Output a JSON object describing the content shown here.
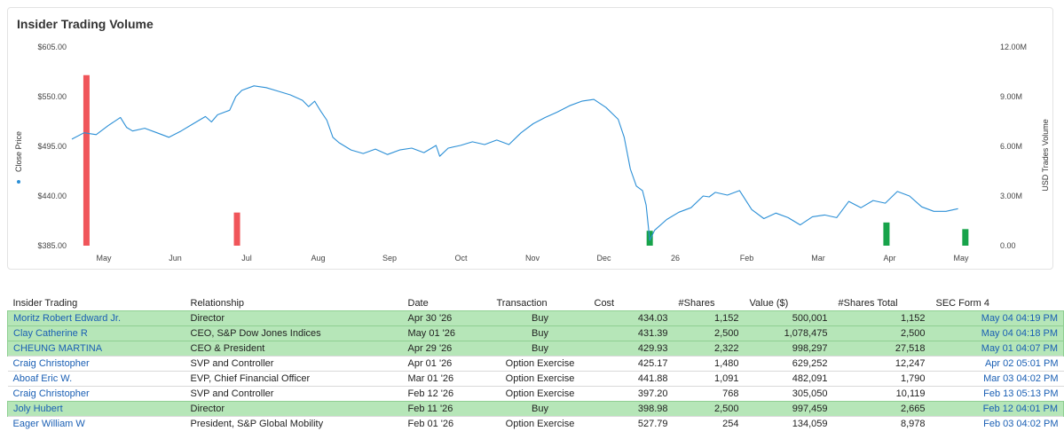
{
  "panel": {
    "title": "Insider Trading Volume"
  },
  "chart_data": {
    "type": "line",
    "title": "Insider Trading Volume",
    "ylabel": "Close Price",
    "y2label": "USD Trades Volume",
    "ylim": [
      385,
      605
    ],
    "y2lim": [
      0,
      12000000
    ],
    "y_ticks": [
      "$605.00",
      "$550.00",
      "$495.00",
      "$440.00",
      "$385.00"
    ],
    "y2_ticks": [
      "12.00M",
      "9.00M",
      "6.00M",
      "3.00M",
      "0.00"
    ],
    "x_ticks": [
      "May",
      "Jun",
      "Jul",
      "Aug",
      "Sep",
      "Oct",
      "Nov",
      "Dec",
      "26",
      "Feb",
      "Mar",
      "Apr",
      "May"
    ],
    "colors": {
      "price": "#2b8fd6",
      "sell": "#f0555a",
      "buy": "#17a34a"
    },
    "close_price": [
      [
        0,
        503
      ],
      [
        1,
        510
      ],
      [
        2,
        508
      ],
      [
        3,
        518
      ],
      [
        4,
        527
      ],
      [
        4.5,
        516
      ],
      [
        5,
        512
      ],
      [
        6,
        515
      ],
      [
        7,
        510
      ],
      [
        8,
        505
      ],
      [
        9,
        512
      ],
      [
        10,
        520
      ],
      [
        11,
        528
      ],
      [
        11.5,
        522
      ],
      [
        12,
        530
      ],
      [
        13,
        535
      ],
      [
        13.5,
        550
      ],
      [
        14,
        557
      ],
      [
        15,
        562
      ],
      [
        16,
        560
      ],
      [
        17,
        556
      ],
      [
        18,
        552
      ],
      [
        19,
        546
      ],
      [
        19.5,
        539
      ],
      [
        20,
        545
      ],
      [
        20.5,
        534
      ],
      [
        21,
        524
      ],
      [
        21.5,
        505
      ],
      [
        22,
        499
      ],
      [
        23,
        491
      ],
      [
        24,
        487
      ],
      [
        25,
        492
      ],
      [
        26,
        486
      ],
      [
        27,
        491
      ],
      [
        28,
        493
      ],
      [
        29,
        488
      ],
      [
        30,
        496
      ],
      [
        30.3,
        484
      ],
      [
        31,
        493
      ],
      [
        32,
        496
      ],
      [
        33,
        500
      ],
      [
        34,
        497
      ],
      [
        35,
        502
      ],
      [
        36,
        497
      ],
      [
        37,
        510
      ],
      [
        38,
        520
      ],
      [
        39,
        527
      ],
      [
        40,
        533
      ],
      [
        41,
        540
      ],
      [
        42,
        545
      ],
      [
        43,
        547
      ],
      [
        44,
        538
      ],
      [
        45,
        525
      ],
      [
        45.5,
        505
      ],
      [
        46,
        470
      ],
      [
        46.5,
        451
      ],
      [
        47,
        446
      ],
      [
        47.3,
        430
      ],
      [
        47.6,
        391
      ],
      [
        48,
        402
      ],
      [
        49,
        414
      ],
      [
        50,
        422
      ],
      [
        51,
        427
      ],
      [
        52,
        440
      ],
      [
        52.5,
        439
      ],
      [
        53,
        444
      ],
      [
        54,
        441
      ],
      [
        55,
        446
      ],
      [
        56,
        425
      ],
      [
        57,
        415
      ],
      [
        58,
        421
      ],
      [
        59,
        416
      ],
      [
        60,
        408
      ],
      [
        61,
        417
      ],
      [
        62,
        419
      ],
      [
        63,
        416
      ],
      [
        64,
        434
      ],
      [
        65,
        427
      ],
      [
        66,
        435
      ],
      [
        67,
        432
      ],
      [
        68,
        445
      ],
      [
        69,
        440
      ],
      [
        70,
        428
      ],
      [
        71,
        423
      ],
      [
        72,
        423
      ],
      [
        73,
        426
      ]
    ],
    "trade_volume_bars": [
      {
        "x": 1.2,
        "value": 10300000,
        "type": "sell"
      },
      {
        "x": 13.6,
        "value": 2000000,
        "type": "sell"
      },
      {
        "x": 47.6,
        "value": 900000,
        "type": "buy"
      },
      {
        "x": 67.1,
        "value": 1400000,
        "type": "buy"
      },
      {
        "x": 73.6,
        "value": 1000000,
        "type": "buy"
      }
    ]
  },
  "table": {
    "headers": {
      "insider": "Insider Trading",
      "relationship": "Relationship",
      "date": "Date",
      "transaction": "Transaction",
      "cost": "Cost",
      "shares": "#Shares",
      "value": "Value ($)",
      "shares_total": "#Shares Total",
      "sec_form": "SEC Form 4"
    },
    "rows": [
      {
        "highlight": true,
        "insider": "Moritz Robert Edward Jr.",
        "relationship": "Director",
        "date": "Apr 30 '26",
        "transaction": "Buy",
        "cost": "434.03",
        "shares": "1,152",
        "value": "500,001",
        "shares_total": "1,152",
        "sec_form": "May 04 04:19 PM"
      },
      {
        "highlight": true,
        "insider": "Clay Catherine R",
        "relationship": "CEO, S&P Dow Jones Indices",
        "date": "May 01 '26",
        "transaction": "Buy",
        "cost": "431.39",
        "shares": "2,500",
        "value": "1,078,475",
        "shares_total": "2,500",
        "sec_form": "May 04 04:18 PM"
      },
      {
        "highlight": true,
        "insider": "CHEUNG MARTINA",
        "relationship": "CEO & President",
        "date": "Apr 29 '26",
        "transaction": "Buy",
        "cost": "429.93",
        "shares": "2,322",
        "value": "998,297",
        "shares_total": "27,518",
        "sec_form": "May 01 04:07 PM"
      },
      {
        "highlight": false,
        "insider": "Craig Christopher",
        "relationship": "SVP and Controller",
        "date": "Apr 01 '26",
        "transaction": "Option Exercise",
        "cost": "425.17",
        "shares": "1,480",
        "value": "629,252",
        "shares_total": "12,247",
        "sec_form": "Apr 02 05:01 PM"
      },
      {
        "highlight": false,
        "insider": "Aboaf Eric W.",
        "relationship": "EVP, Chief Financial Officer",
        "date": "Mar 01 '26",
        "transaction": "Option Exercise",
        "cost": "441.88",
        "shares": "1,091",
        "value": "482,091",
        "shares_total": "1,790",
        "sec_form": "Mar 03 04:02 PM"
      },
      {
        "highlight": false,
        "insider": "Craig Christopher",
        "relationship": "SVP and Controller",
        "date": "Feb 12 '26",
        "transaction": "Option Exercise",
        "cost": "397.20",
        "shares": "768",
        "value": "305,050",
        "shares_total": "10,119",
        "sec_form": "Feb 13 05:13 PM"
      },
      {
        "highlight": true,
        "insider": "Joly Hubert",
        "relationship": "Director",
        "date": "Feb 11 '26",
        "transaction": "Buy",
        "cost": "398.98",
        "shares": "2,500",
        "value": "997,459",
        "shares_total": "2,665",
        "sec_form": "Feb 12 04:01 PM"
      },
      {
        "highlight": false,
        "insider": "Eager William W",
        "relationship": "President, S&P Global Mobility",
        "date": "Feb 01 '26",
        "transaction": "Option Exercise",
        "cost": "527.79",
        "shares": "254",
        "value": "134,059",
        "shares_total": "8,978",
        "sec_form": "Feb 03 04:02 PM"
      }
    ]
  }
}
